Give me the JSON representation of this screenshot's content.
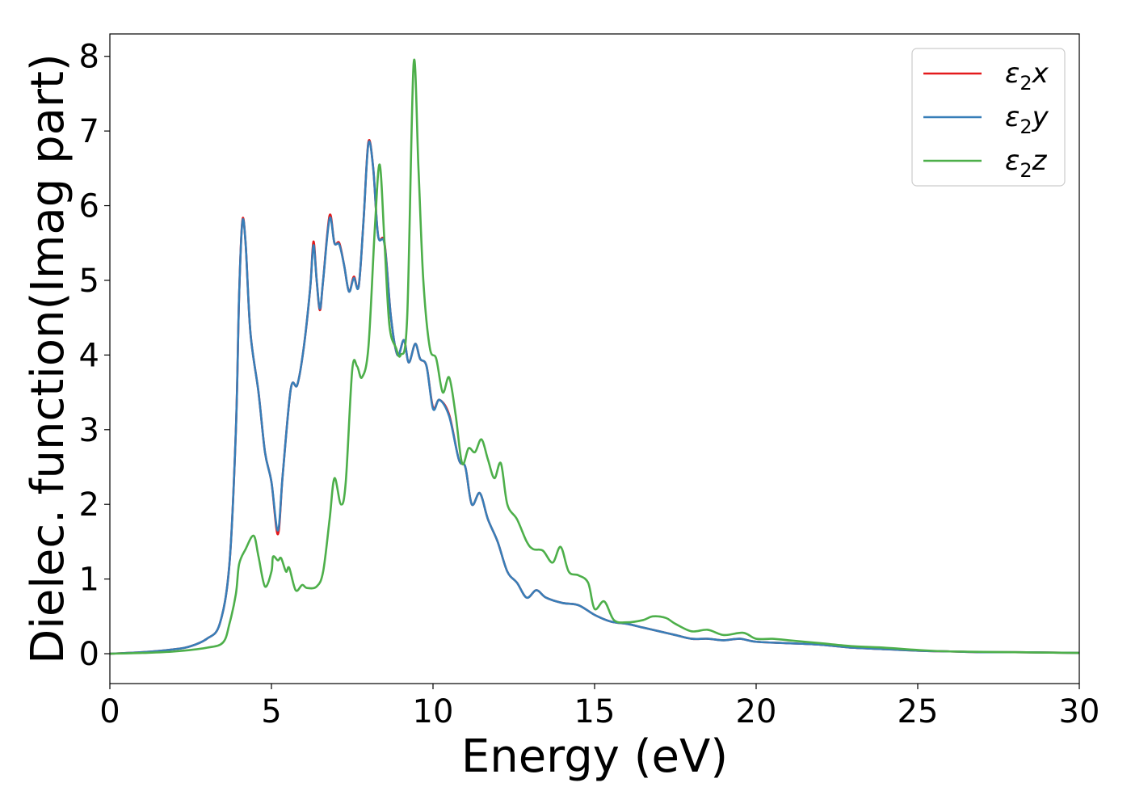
{
  "chart_data": {
    "type": "line",
    "title": "",
    "xlabel": "Energy (eV)",
    "ylabel": "Dielec. function(Imag part)",
    "xlim": [
      0,
      30
    ],
    "ylim": [
      -0.4,
      8.3
    ],
    "xticks": [
      0,
      5,
      10,
      15,
      20,
      25,
      30
    ],
    "yticks": [
      0,
      1,
      2,
      3,
      4,
      5,
      6,
      7,
      8
    ],
    "grid": false,
    "legend_position": "top-right",
    "legend": [
      {
        "label": "ε₂x",
        "base": "ε",
        "sub": "2",
        "suffix": "x"
      },
      {
        "label": "ε₂y",
        "base": "ε",
        "sub": "2",
        "suffix": "y"
      },
      {
        "label": "ε₂z",
        "base": "ε",
        "sub": "2",
        "suffix": "z"
      }
    ],
    "series": [
      {
        "name": "ε₂x",
        "color": "#e41a1c",
        "points": [
          [
            0,
            0
          ],
          [
            1,
            0.02
          ],
          [
            2,
            0.06
          ],
          [
            2.5,
            0.1
          ],
          [
            3,
            0.2
          ],
          [
            3.4,
            0.4
          ],
          [
            3.7,
            1.2
          ],
          [
            3.9,
            3.0
          ],
          [
            4.0,
            4.8
          ],
          [
            4.1,
            5.8
          ],
          [
            4.2,
            5.5
          ],
          [
            4.35,
            4.3
          ],
          [
            4.6,
            3.5
          ],
          [
            4.8,
            2.7
          ],
          [
            5.0,
            2.3
          ],
          [
            5.2,
            1.6
          ],
          [
            5.35,
            2.4
          ],
          [
            5.6,
            3.55
          ],
          [
            5.8,
            3.6
          ],
          [
            6.0,
            4.1
          ],
          [
            6.2,
            4.9
          ],
          [
            6.3,
            5.52
          ],
          [
            6.4,
            5.0
          ],
          [
            6.5,
            4.6
          ],
          [
            6.6,
            5.0
          ],
          [
            6.8,
            5.87
          ],
          [
            6.95,
            5.5
          ],
          [
            7.1,
            5.5
          ],
          [
            7.25,
            5.2
          ],
          [
            7.4,
            4.85
          ],
          [
            7.55,
            5.05
          ],
          [
            7.7,
            4.92
          ],
          [
            7.85,
            5.8
          ],
          [
            8.0,
            6.85
          ],
          [
            8.15,
            6.5
          ],
          [
            8.3,
            5.6
          ],
          [
            8.5,
            5.5
          ],
          [
            8.7,
            4.5
          ],
          [
            8.9,
            4.0
          ],
          [
            9.1,
            4.2
          ],
          [
            9.25,
            3.9
          ],
          [
            9.45,
            4.15
          ],
          [
            9.6,
            3.95
          ],
          [
            9.8,
            3.85
          ],
          [
            10.0,
            3.3
          ],
          [
            10.2,
            3.4
          ],
          [
            10.5,
            3.2
          ],
          [
            10.8,
            2.6
          ],
          [
            11.0,
            2.5
          ],
          [
            11.2,
            2.0
          ],
          [
            11.45,
            2.15
          ],
          [
            11.7,
            1.8
          ],
          [
            12.0,
            1.5
          ],
          [
            12.3,
            1.1
          ],
          [
            12.6,
            0.95
          ],
          [
            12.9,
            0.75
          ],
          [
            13.2,
            0.85
          ],
          [
            13.5,
            0.75
          ],
          [
            14.0,
            0.68
          ],
          [
            14.5,
            0.65
          ],
          [
            15.0,
            0.52
          ],
          [
            15.5,
            0.43
          ],
          [
            16.0,
            0.4
          ],
          [
            16.5,
            0.35
          ],
          [
            17.0,
            0.3
          ],
          [
            17.5,
            0.25
          ],
          [
            18.0,
            0.2
          ],
          [
            18.5,
            0.2
          ],
          [
            19.0,
            0.18
          ],
          [
            19.5,
            0.2
          ],
          [
            20.0,
            0.16
          ],
          [
            21.0,
            0.14
          ],
          [
            22.0,
            0.12
          ],
          [
            23.0,
            0.08
          ],
          [
            24.0,
            0.06
          ],
          [
            25.0,
            0.04
          ],
          [
            26.0,
            0.03
          ],
          [
            27.0,
            0.02
          ],
          [
            28.0,
            0.02
          ],
          [
            30.0,
            0.01
          ]
        ]
      },
      {
        "name": "ε₂y",
        "color": "#377eb8",
        "points": [
          [
            0,
            0
          ],
          [
            1,
            0.02
          ],
          [
            2,
            0.06
          ],
          [
            2.5,
            0.1
          ],
          [
            3,
            0.2
          ],
          [
            3.4,
            0.4
          ],
          [
            3.7,
            1.2
          ],
          [
            3.9,
            3.0
          ],
          [
            4.0,
            4.8
          ],
          [
            4.1,
            5.78
          ],
          [
            4.2,
            5.5
          ],
          [
            4.35,
            4.3
          ],
          [
            4.6,
            3.5
          ],
          [
            4.8,
            2.7
          ],
          [
            5.0,
            2.3
          ],
          [
            5.2,
            1.65
          ],
          [
            5.35,
            2.4
          ],
          [
            5.6,
            3.55
          ],
          [
            5.8,
            3.6
          ],
          [
            6.0,
            4.1
          ],
          [
            6.2,
            4.9
          ],
          [
            6.3,
            5.47
          ],
          [
            6.4,
            5.0
          ],
          [
            6.5,
            4.62
          ],
          [
            6.6,
            5.0
          ],
          [
            6.8,
            5.83
          ],
          [
            6.95,
            5.5
          ],
          [
            7.1,
            5.48
          ],
          [
            7.25,
            5.2
          ],
          [
            7.4,
            4.85
          ],
          [
            7.55,
            5.03
          ],
          [
            7.7,
            4.92
          ],
          [
            7.85,
            5.8
          ],
          [
            8.0,
            6.83
          ],
          [
            8.15,
            6.5
          ],
          [
            8.3,
            5.6
          ],
          [
            8.5,
            5.48
          ],
          [
            8.7,
            4.5
          ],
          [
            8.9,
            4.0
          ],
          [
            9.1,
            4.2
          ],
          [
            9.25,
            3.9
          ],
          [
            9.45,
            4.15
          ],
          [
            9.6,
            3.95
          ],
          [
            9.8,
            3.85
          ],
          [
            10.0,
            3.28
          ],
          [
            10.2,
            3.4
          ],
          [
            10.5,
            3.18
          ],
          [
            10.8,
            2.6
          ],
          [
            11.0,
            2.5
          ],
          [
            11.2,
            2.0
          ],
          [
            11.45,
            2.15
          ],
          [
            11.7,
            1.8
          ],
          [
            12.0,
            1.5
          ],
          [
            12.3,
            1.1
          ],
          [
            12.6,
            0.95
          ],
          [
            12.9,
            0.75
          ],
          [
            13.2,
            0.85
          ],
          [
            13.5,
            0.75
          ],
          [
            14.0,
            0.68
          ],
          [
            14.5,
            0.65
          ],
          [
            15.0,
            0.52
          ],
          [
            15.5,
            0.43
          ],
          [
            16.0,
            0.4
          ],
          [
            16.5,
            0.35
          ],
          [
            17.0,
            0.3
          ],
          [
            17.5,
            0.25
          ],
          [
            18.0,
            0.2
          ],
          [
            18.5,
            0.2
          ],
          [
            19.0,
            0.18
          ],
          [
            19.5,
            0.2
          ],
          [
            20.0,
            0.16
          ],
          [
            21.0,
            0.14
          ],
          [
            22.0,
            0.12
          ],
          [
            23.0,
            0.08
          ],
          [
            24.0,
            0.06
          ],
          [
            25.0,
            0.04
          ],
          [
            26.0,
            0.03
          ],
          [
            27.0,
            0.02
          ],
          [
            28.0,
            0.02
          ],
          [
            30.0,
            0.01
          ]
        ]
      },
      {
        "name": "ε₂z",
        "color": "#4daf4a",
        "points": [
          [
            0,
            0
          ],
          [
            1,
            0.01
          ],
          [
            2,
            0.03
          ],
          [
            3,
            0.08
          ],
          [
            3.5,
            0.15
          ],
          [
            3.7,
            0.4
          ],
          [
            3.9,
            0.8
          ],
          [
            4.0,
            1.2
          ],
          [
            4.2,
            1.4
          ],
          [
            4.45,
            1.58
          ],
          [
            4.6,
            1.3
          ],
          [
            4.8,
            0.9
          ],
          [
            5.0,
            1.1
          ],
          [
            5.05,
            1.3
          ],
          [
            5.2,
            1.25
          ],
          [
            5.3,
            1.28
          ],
          [
            5.45,
            1.1
          ],
          [
            5.55,
            1.15
          ],
          [
            5.75,
            0.85
          ],
          [
            5.95,
            0.92
          ],
          [
            6.1,
            0.88
          ],
          [
            6.4,
            0.9
          ],
          [
            6.6,
            1.1
          ],
          [
            6.8,
            1.8
          ],
          [
            6.95,
            2.35
          ],
          [
            7.15,
            2.0
          ],
          [
            7.3,
            2.3
          ],
          [
            7.5,
            3.8
          ],
          [
            7.65,
            3.85
          ],
          [
            7.8,
            3.7
          ],
          [
            8.0,
            4.1
          ],
          [
            8.2,
            5.7
          ],
          [
            8.35,
            6.55
          ],
          [
            8.5,
            5.5
          ],
          [
            8.65,
            4.4
          ],
          [
            8.85,
            4.1
          ],
          [
            9.0,
            4.0
          ],
          [
            9.2,
            4.5
          ],
          [
            9.4,
            7.9
          ],
          [
            9.55,
            6.5
          ],
          [
            9.7,
            5.0
          ],
          [
            9.9,
            4.1
          ],
          [
            10.1,
            3.95
          ],
          [
            10.3,
            3.5
          ],
          [
            10.5,
            3.7
          ],
          [
            10.7,
            3.2
          ],
          [
            10.9,
            2.55
          ],
          [
            11.1,
            2.75
          ],
          [
            11.3,
            2.7
          ],
          [
            11.5,
            2.87
          ],
          [
            11.7,
            2.6
          ],
          [
            11.9,
            2.35
          ],
          [
            12.1,
            2.55
          ],
          [
            12.3,
            2.0
          ],
          [
            12.6,
            1.8
          ],
          [
            12.9,
            1.5
          ],
          [
            13.1,
            1.4
          ],
          [
            13.4,
            1.38
          ],
          [
            13.7,
            1.22
          ],
          [
            13.95,
            1.43
          ],
          [
            14.2,
            1.1
          ],
          [
            14.5,
            1.05
          ],
          [
            14.8,
            0.95
          ],
          [
            15.0,
            0.6
          ],
          [
            15.3,
            0.7
          ],
          [
            15.6,
            0.45
          ],
          [
            16.0,
            0.42
          ],
          [
            16.5,
            0.45
          ],
          [
            16.8,
            0.5
          ],
          [
            17.2,
            0.48
          ],
          [
            17.5,
            0.4
          ],
          [
            18.0,
            0.3
          ],
          [
            18.5,
            0.32
          ],
          [
            19.0,
            0.25
          ],
          [
            19.6,
            0.28
          ],
          [
            20.0,
            0.2
          ],
          [
            20.5,
            0.2
          ],
          [
            21.0,
            0.18
          ],
          [
            22.0,
            0.14
          ],
          [
            23.0,
            0.1
          ],
          [
            24.0,
            0.08
          ],
          [
            25.0,
            0.05
          ],
          [
            26.0,
            0.03
          ],
          [
            28.0,
            0.02
          ],
          [
            30.0,
            0.01
          ]
        ]
      }
    ]
  }
}
